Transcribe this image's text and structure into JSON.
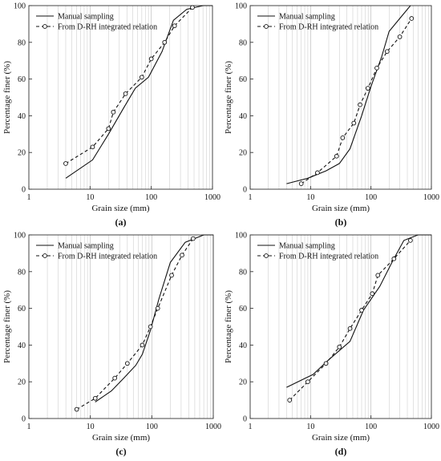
{
  "colors": {
    "axis": "#333333",
    "grid": "#cfcfcf",
    "manual": "#111111",
    "drh": "#111111",
    "marker_fill": "#ffffff"
  },
  "chart_data": [
    {
      "type": "line",
      "panel_label": "(a)",
      "xlabel": "Grain size (mm)",
      "ylabel": "Percentage finer (%)",
      "x_scale": "log",
      "xlim": [
        1,
        1000
      ],
      "ylim": [
        0,
        100
      ],
      "x_ticks": [
        "1",
        "10",
        "100",
        "1000"
      ],
      "y_ticks": [
        "0",
        "20",
        "40",
        "60",
        "80",
        "100"
      ],
      "grid": "vertical",
      "legend_position": "top-left",
      "series": [
        {
          "name": "Manual sampling",
          "style": "solid",
          "marker": false,
          "points": [
            [
              4,
              6
            ],
            [
              11,
              16
            ],
            [
              20,
              30
            ],
            [
              35,
              44
            ],
            [
              55,
              55
            ],
            [
              90,
              61
            ],
            [
              150,
              75
            ],
            [
              230,
              92
            ],
            [
              380,
              98
            ],
            [
              700,
              100
            ],
            [
              1000,
              100
            ]
          ]
        },
        {
          "name": "From D-RH integrated relation",
          "style": "dashed",
          "marker": true,
          "points": [
            [
              4,
              14
            ],
            [
              11,
              23
            ],
            [
              20,
              33
            ],
            [
              24,
              42
            ],
            [
              38,
              52
            ],
            [
              70,
              61
            ],
            [
              100,
              71
            ],
            [
              165,
              80
            ],
            [
              240,
              89
            ],
            [
              470,
              99
            ]
          ]
        }
      ]
    },
    {
      "type": "line",
      "panel_label": "(b)",
      "xlabel": "Grain size (mm)",
      "ylabel": "Percentage finer (%)",
      "x_scale": "log",
      "xlim": [
        1,
        1000
      ],
      "ylim": [
        0,
        100
      ],
      "x_ticks": [
        "1",
        "10",
        "100",
        "1000"
      ],
      "y_ticks": [
        "0",
        "20",
        "40",
        "60",
        "80",
        "100"
      ],
      "grid": "vertical",
      "legend_position": "top-left",
      "series": [
        {
          "name": "Manual sampling",
          "style": "solid",
          "marker": false,
          "points": [
            [
              4,
              3
            ],
            [
              9,
              6
            ],
            [
              18,
              10
            ],
            [
              30,
              14
            ],
            [
              45,
              22
            ],
            [
              70,
              40
            ],
            [
              100,
              56
            ],
            [
              150,
              72
            ],
            [
              200,
              86
            ],
            [
              300,
              93
            ],
            [
              450,
              100
            ]
          ]
        },
        {
          "name": "From D-RH integrated relation",
          "style": "dashed",
          "marker": true,
          "points": [
            [
              7,
              3
            ],
            [
              13,
              9
            ],
            [
              27,
              18
            ],
            [
              34,
              28
            ],
            [
              52,
              36
            ],
            [
              66,
              46
            ],
            [
              89,
              55
            ],
            [
              125,
              66
            ],
            [
              185,
              75
            ],
            [
              300,
              83
            ],
            [
              470,
              93
            ]
          ]
        }
      ]
    },
    {
      "type": "line",
      "panel_label": "(c)",
      "xlabel": "Grain size (mm)",
      "ylabel": "Percentage finer (%)",
      "x_scale": "log",
      "xlim": [
        1,
        1000
      ],
      "ylim": [
        0,
        100
      ],
      "x_ticks": [
        "1",
        "10",
        "100",
        "1000"
      ],
      "y_ticks": [
        "0",
        "20",
        "40",
        "60",
        "80",
        "100"
      ],
      "grid": "vertical",
      "legend_position": "top-left",
      "series": [
        {
          "name": "Manual sampling",
          "style": "solid",
          "marker": false,
          "points": [
            [
              12,
              9
            ],
            [
              22,
              15
            ],
            [
              35,
              22
            ],
            [
              55,
              29
            ],
            [
              70,
              35
            ],
            [
              95,
              48
            ],
            [
              130,
              65
            ],
            [
              200,
              85
            ],
            [
              350,
              96
            ],
            [
              700,
              100
            ],
            [
              1000,
              100
            ]
          ]
        },
        {
          "name": "From D-RH integrated relation",
          "style": "dashed",
          "marker": true,
          "points": [
            [
              6,
              5
            ],
            [
              12,
              11
            ],
            [
              25,
              22
            ],
            [
              40,
              30
            ],
            [
              70,
              40
            ],
            [
              95,
              50
            ],
            [
              125,
              60
            ],
            [
              210,
              78
            ],
            [
              310,
              89
            ],
            [
              470,
              98
            ]
          ]
        }
      ]
    },
    {
      "type": "line",
      "panel_label": "(d)",
      "xlabel": "Grain size (mm)",
      "ylabel": "Percentage finer (%)",
      "x_scale": "log",
      "xlim": [
        1,
        1000
      ],
      "ylim": [
        0,
        100
      ],
      "x_ticks": [
        "1",
        "10",
        "100",
        "1000"
      ],
      "y_ticks": [
        "0",
        "20",
        "40",
        "60",
        "80",
        "100"
      ],
      "grid": "vertical",
      "legend_position": "top-left",
      "series": [
        {
          "name": "Manual sampling",
          "style": "solid",
          "marker": false,
          "points": [
            [
              4,
              17
            ],
            [
              11,
              24
            ],
            [
              20,
              32
            ],
            [
              45,
              42
            ],
            [
              75,
              59
            ],
            [
              140,
              72
            ],
            [
              230,
              86
            ],
            [
              350,
              97
            ],
            [
              600,
              100
            ],
            [
              1000,
              100
            ]
          ]
        },
        {
          "name": "From D-RH integrated relation",
          "style": "dashed",
          "marker": true,
          "points": [
            [
              4.5,
              10
            ],
            [
              9,
              20
            ],
            [
              18,
              30
            ],
            [
              30,
              39
            ],
            [
              45,
              49
            ],
            [
              70,
              59
            ],
            [
              105,
              68
            ],
            [
              130,
              78
            ],
            [
              240,
              87
            ],
            [
              450,
              97
            ]
          ]
        }
      ]
    }
  ]
}
